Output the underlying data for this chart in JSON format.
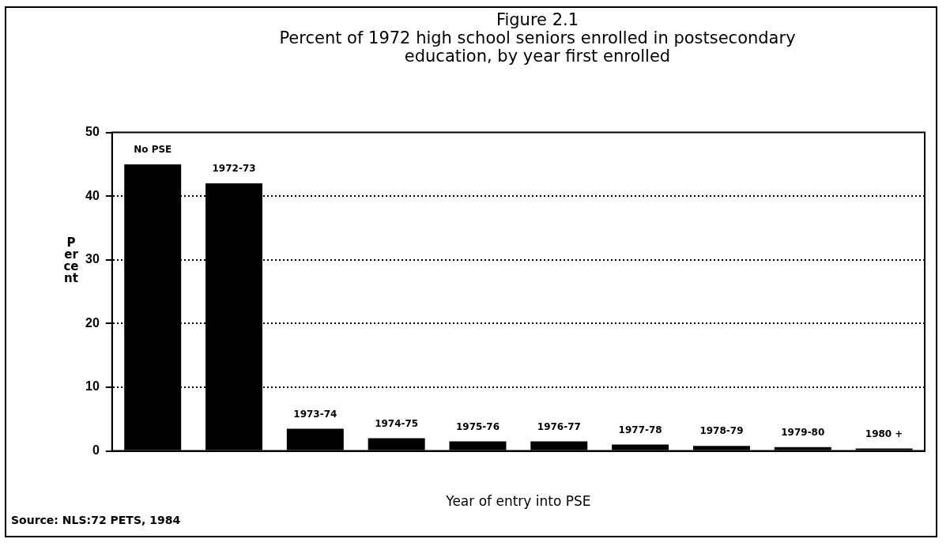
{
  "chart_data": {
    "type": "bar",
    "title": "Figure 2.1",
    "subtitle": "Percent of 1972 high school seniors enrolled in postsecondary education, by year first enrolled",
    "xlabel": "Year of entry into PSE",
    "ylabel": "Percent",
    "categories": [
      "No PSE",
      "1972-73",
      "1973-74",
      "1974-75",
      "1975-76",
      "1976-77",
      "1977-78",
      "1978-79",
      "1979-80",
      "1980 +"
    ],
    "values": [
      45,
      42,
      3.5,
      2,
      1.5,
      1.5,
      1,
      0.8,
      0.6,
      0.4
    ],
    "color": "#000000",
    "ylim": [
      0,
      50
    ],
    "yticks": [
      0,
      10,
      20,
      30,
      40,
      50
    ],
    "grid": "y",
    "annotations": [
      "Source: NLS:72 PETS, 1984"
    ]
  }
}
